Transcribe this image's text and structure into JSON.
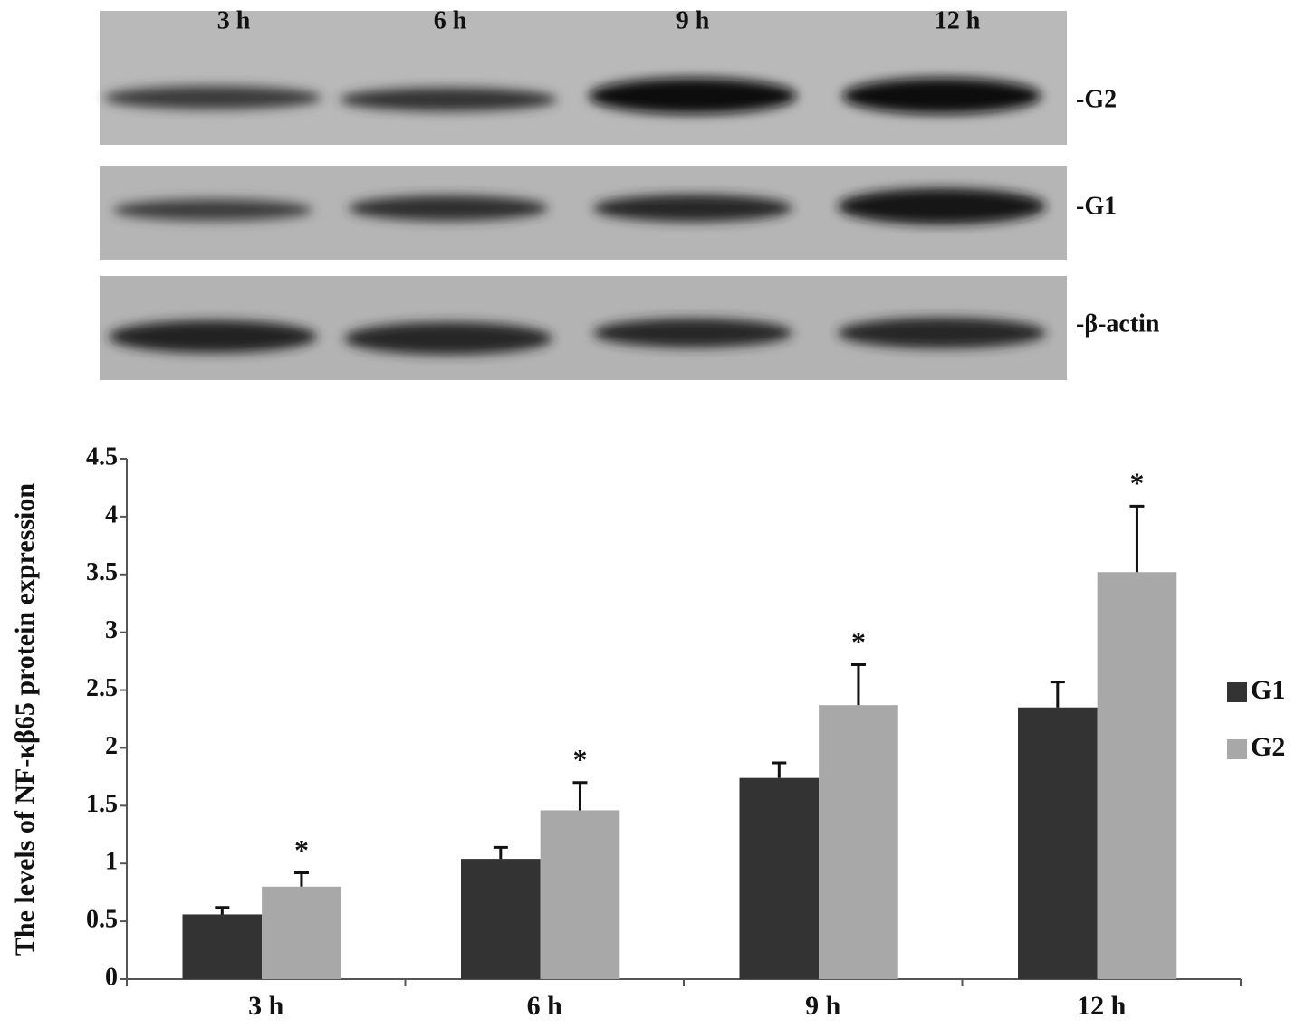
{
  "blot": {
    "lanes": [
      "3 h",
      "6 h",
      "9 h",
      "12 h"
    ],
    "bands": [
      "-G2",
      "-G1",
      "-β-actin"
    ]
  },
  "chart_data": {
    "type": "bar",
    "y_label": "The levels of NF-κβ65 protein expression",
    "categories": [
      "3 h",
      "6 h",
      "9 h",
      "12 h"
    ],
    "series": [
      {
        "name": "G1",
        "color": "#333333",
        "values": [
          0.56,
          1.04,
          1.74,
          2.35
        ],
        "errors": [
          0.06,
          0.1,
          0.13,
          0.22
        ]
      },
      {
        "name": "G2",
        "color": "#a8a8a8",
        "values": [
          0.8,
          1.46,
          2.37,
          3.52
        ],
        "errors": [
          0.12,
          0.24,
          0.35,
          0.57
        ],
        "annotations": [
          "*",
          "*",
          "*",
          "*"
        ]
      }
    ],
    "ylim": [
      0,
      4.5
    ],
    "yticks": [
      0,
      0.5,
      1,
      1.5,
      2,
      2.5,
      3,
      3.5,
      4,
      4.5
    ],
    "grid": false,
    "legend": "right"
  }
}
